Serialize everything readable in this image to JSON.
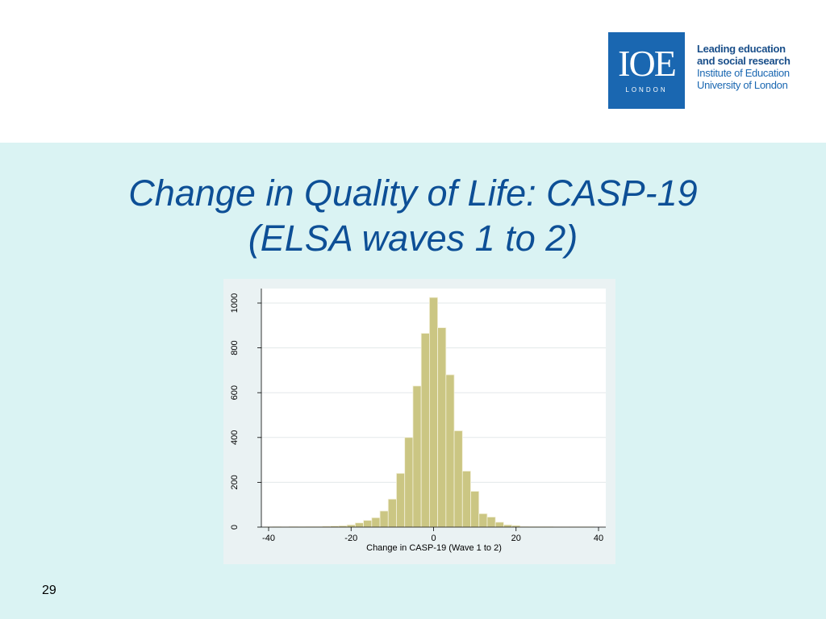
{
  "logo": {
    "mark": "IOE",
    "subtext": "LONDON",
    "color": "#1a67b1",
    "tagline_line1": "Leading education",
    "tagline_line2": "and social research",
    "tagline_line3": "Institute of Education",
    "tagline_line4": "University of London"
  },
  "slide": {
    "title_line1": "Change in Quality of Life: CASP-19",
    "title_line2": "(ELSA waves 1 to 2)",
    "page_number": "29"
  },
  "colors": {
    "content_background": "#daf3f3",
    "title": "#0d4f96",
    "bar_fill": "#cbc683"
  },
  "chart_data": {
    "type": "bar",
    "subtype": "histogram",
    "title": "",
    "xlabel": "Change in CASP-19 (Wave 1 to 2)",
    "ylabel": "",
    "xlim": [
      -42,
      41
    ],
    "ylim": [
      0,
      1050
    ],
    "x_ticks": [
      -40,
      -20,
      0,
      20,
      40
    ],
    "y_ticks": [
      0,
      200,
      400,
      600,
      800,
      1000
    ],
    "grid": true,
    "bin_width": 2,
    "bin_starts": [
      -41,
      -39,
      -37,
      -35,
      -33,
      -31,
      -29,
      -27,
      -25,
      -23,
      -21,
      -19,
      -17,
      -15,
      -13,
      -11,
      -9,
      -7,
      -5,
      -3,
      -1,
      1,
      3,
      5,
      7,
      9,
      11,
      13,
      15,
      17,
      19,
      21,
      23,
      25,
      27,
      29,
      31,
      33,
      35,
      37
    ],
    "values": [
      1,
      2,
      1,
      3,
      2,
      3,
      3,
      4,
      5,
      6,
      10,
      19,
      30,
      42,
      72,
      125,
      240,
      400,
      630,
      865,
      1025,
      890,
      680,
      430,
      250,
      160,
      60,
      45,
      22,
      10,
      7,
      3,
      2,
      2,
      2,
      1,
      1,
      1,
      1,
      1
    ]
  }
}
